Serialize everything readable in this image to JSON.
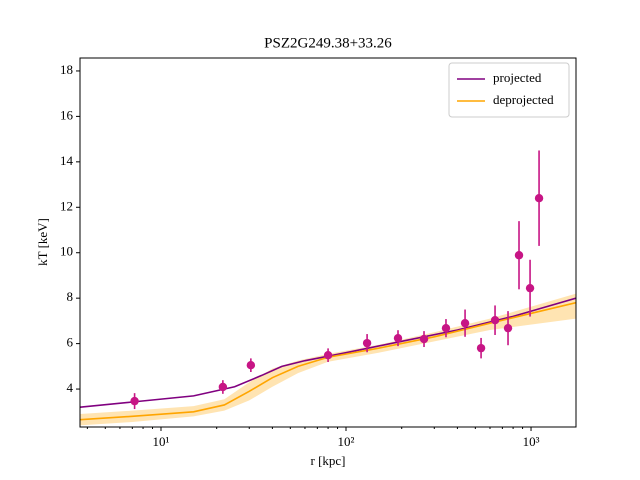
{
  "chart_data": {
    "type": "line",
    "title": "PSZ2G249.38+33.26",
    "x_label": "r [kpc]",
    "y_label": "kT [keV]",
    "xscale": "log",
    "xlim": [
      3.65,
      1750
    ],
    "ylim": [
      2.33,
      18.57
    ],
    "xticks": [
      {
        "value": 10,
        "label": "10¹"
      },
      {
        "value": 100,
        "label": "10²"
      },
      {
        "value": 1000,
        "label": "10³"
      }
    ],
    "xminorticks": [
      4,
      5,
      6,
      7,
      8,
      9,
      20,
      30,
      40,
      50,
      60,
      70,
      80,
      90,
      200,
      300,
      400,
      500,
      600,
      700,
      800,
      900
    ],
    "yticks": [
      4,
      6,
      8,
      10,
      12,
      14,
      16,
      18
    ],
    "legend": "upper right",
    "series": [
      {
        "name": "projected",
        "color": "#800080",
        "x": [
          3.65,
          7,
          15,
          25,
          35,
          45,
          60,
          100,
          200,
          400,
          800,
          1750
        ],
        "values": [
          3.2,
          3.43,
          3.7,
          4.1,
          4.6,
          5.0,
          5.25,
          5.6,
          6.1,
          6.6,
          7.2,
          8.0
        ]
      },
      {
        "name": "deprojected",
        "color": "#ffa500",
        "x": [
          3.65,
          7,
          15,
          22,
          30,
          40,
          55,
          80,
          150,
          300,
          600,
          1750
        ],
        "values": [
          2.65,
          2.8,
          3.0,
          3.3,
          3.9,
          4.5,
          5.0,
          5.4,
          5.8,
          6.3,
          6.9,
          7.8
        ],
        "lower": [
          2.4,
          2.55,
          2.8,
          3.05,
          3.5,
          4.1,
          4.7,
          5.2,
          5.6,
          6.1,
          6.6,
          7.1
        ],
        "upper": [
          2.9,
          3.05,
          3.25,
          3.55,
          4.3,
          4.9,
          5.25,
          5.55,
          5.95,
          6.5,
          7.1,
          8.2
        ]
      }
    ],
    "points": {
      "color": "#c71585",
      "x": [
        7.2,
        21.6,
        30.6,
        80,
        130,
        191,
        264,
        347,
        440,
        537,
        639,
        751,
        861,
        988,
        1105
      ],
      "values": [
        3.47,
        4.09,
        5.05,
        5.49,
        6.02,
        6.24,
        6.2,
        6.68,
        6.9,
        5.8,
        7.03,
        6.68,
        9.89,
        8.44,
        12.4
      ],
      "errors": [
        0.35,
        0.3,
        0.3,
        0.3,
        0.4,
        0.35,
        0.35,
        0.4,
        0.6,
        0.45,
        0.65,
        0.75,
        1.5,
        1.25,
        2.1
      ]
    }
  }
}
